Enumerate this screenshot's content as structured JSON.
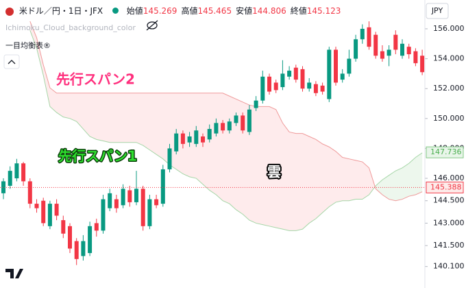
{
  "chart_data": {
    "type": "candlestick",
    "title": "米ドル／円・1日・JFX",
    "ohlc_readout": [
      {
        "label": "始値",
        "value": 145.269
      },
      {
        "label": "高値",
        "value": 145.465
      },
      {
        "label": "安値",
        "value": 144.806
      },
      {
        "label": "終値",
        "value": 145.123
      }
    ],
    "indicator": "Ichimoku_Cloud_background_color",
    "indicator_name": "一目均衡表®",
    "currency": "JPY",
    "ylim": [
      139.03,
      156.78
    ],
    "yticks": [
      {
        "value": 156,
        "label": "156.000"
      },
      {
        "value": 154,
        "label": "154.000"
      },
      {
        "value": 152,
        "label": "152.000"
      },
      {
        "value": 150,
        "label": "150.000"
      },
      {
        "value": 148,
        "label": "148.000"
      },
      {
        "value": 146,
        "label": "146.000"
      },
      {
        "value": 144.5,
        "label": "144.500"
      },
      {
        "value": 143,
        "label": "143.000"
      },
      {
        "value": 141.5,
        "label": "141.500"
      },
      {
        "value": 140.1,
        "label": "140.100"
      }
    ],
    "up_color": "#089981",
    "down_color": "#f23645",
    "open": [
      145.0,
      145.5,
      146.0,
      147.0,
      145.8,
      144.3,
      144.5,
      142.8,
      144.3,
      143.2,
      142.8,
      141.8,
      140.8,
      141.0,
      143.0,
      142.5,
      144.0,
      144.6,
      144.2,
      145.2,
      144.4,
      145.3,
      142.8,
      144.6,
      144.3,
      146.6,
      147.8,
      149.0,
      148.4,
      148.3,
      148.8,
      148.6,
      149.0,
      149.7,
      149.2,
      149.7,
      150.2,
      149.1,
      150.7,
      151.2,
      152.8,
      152.4,
      152.1,
      152.8,
      153.4,
      153.3,
      152.0,
      152.3,
      152.2,
      151.3,
      154.6,
      152.6,
      153.0,
      154.0,
      155.3,
      156.1,
      155.6,
      154.5,
      154.2,
      155.6,
      154.2,
      154.8,
      154.5,
      154.2
    ],
    "high": [
      146.0,
      146.8,
      147.3,
      147.1,
      146.0,
      144.6,
      144.7,
      144.5,
      144.6,
      143.5,
      143.0,
      142.0,
      142.2,
      143.1,
      143.3,
      144.9,
      145.3,
      144.9,
      145.6,
      145.5,
      146.5,
      145.5,
      144.9,
      144.9,
      146.9,
      148.3,
      149.3,
      149.2,
      149.1,
      149.5,
      149.0,
      149.6,
      150.0,
      149.9,
      150.0,
      150.4,
      150.4,
      150.9,
      151.5,
      153.2,
      153.0,
      152.6,
      153.9,
      153.5,
      153.6,
      153.5,
      152.7,
      152.5,
      152.4,
      154.8,
      154.8,
      153.3,
      154.6,
      155.6,
      156.3,
      156.5,
      155.8,
      154.9,
      154.9,
      155.9,
      155.3,
      155.0,
      154.7,
      154.6
    ],
    "low": [
      144.6,
      145.3,
      145.8,
      145.5,
      144.0,
      143.7,
      142.8,
      142.6,
      143.2,
      142.0,
      141.0,
      140.2,
      140.5,
      140.8,
      142.1,
      142.3,
      143.8,
      143.7,
      144.0,
      144.1,
      144.2,
      142.5,
      142.6,
      144.0,
      144.1,
      146.4,
      147.6,
      148.0,
      148.1,
      148.1,
      148.1,
      148.4,
      148.8,
      149.0,
      149.0,
      149.5,
      149.0,
      148.9,
      150.5,
      151.0,
      151.6,
      151.7,
      151.9,
      152.6,
      152.4,
      151.8,
      151.8,
      151.5,
      151.6,
      151.1,
      152.2,
      152.4,
      152.8,
      153.8,
      155.0,
      154.6,
      154.0,
      153.8,
      153.5,
      154.3,
      154.0,
      154.0,
      153.5,
      152.9
    ],
    "close": [
      145.8,
      146.5,
      147.0,
      145.8,
      144.3,
      144.0,
      143.0,
      144.3,
      143.5,
      142.3,
      141.3,
      140.6,
      141.8,
      142.8,
      142.5,
      144.6,
      145.0,
      144.0,
      145.3,
      144.4,
      145.3,
      142.8,
      144.6,
      144.2,
      146.6,
      148.0,
      149.0,
      148.3,
      148.8,
      149.2,
      148.4,
      149.3,
      149.7,
      149.2,
      149.8,
      150.2,
      149.2,
      150.6,
      151.2,
      152.8,
      151.8,
      151.9,
      153.0,
      153.2,
      152.6,
      152.0,
      152.4,
      151.7,
      151.8,
      154.6,
      152.4,
      153.0,
      154.0,
      155.3,
      156.0,
      154.8,
      154.2,
      154.0,
      154.6,
      154.6,
      155.0,
      154.3,
      153.7,
      153.1
    ],
    "series": [
      {
        "name": "先行スパン1",
        "color": "#a5d6a7",
        "values": [
          null,
          null,
          null,
          null,
          155.9,
          154.7,
          152.9,
          150.8,
          150.4,
          150.1,
          150.0,
          149.8,
          149.3,
          148.8,
          148.6,
          148.5,
          148.4,
          148.4,
          148.4,
          148.4,
          148.4,
          148.2,
          147.9,
          147.6,
          147.3,
          146.9,
          146.6,
          146.3,
          146.1,
          146.0,
          145.6,
          145.2,
          144.9,
          144.5,
          144.3,
          143.9,
          143.6,
          143.2,
          143.0,
          142.9,
          142.8,
          142.7,
          142.6,
          142.5,
          142.5,
          142.6,
          143.0,
          143.3,
          143.7,
          144.1,
          144.4,
          144.5,
          144.5,
          144.6,
          144.6,
          144.9,
          145.5,
          145.9,
          146.2,
          146.5,
          146.7,
          147.0,
          147.4,
          147.7
        ]
      },
      {
        "name": "先行スパン2",
        "color": "#ef9a9a",
        "values": [
          null,
          null,
          null,
          null,
          156.5,
          155.4,
          153.6,
          152.05,
          151.7,
          151.7,
          151.7,
          151.7,
          151.7,
          151.7,
          151.7,
          151.7,
          151.7,
          151.7,
          151.7,
          151.7,
          151.7,
          151.7,
          151.7,
          151.7,
          151.7,
          151.7,
          151.7,
          151.7,
          151.7,
          151.7,
          151.7,
          151.7,
          151.7,
          151.7,
          151.5,
          151.3,
          151.1,
          150.9,
          150.8,
          150.8,
          150.8,
          150.6,
          149.7,
          149.1,
          149.0,
          149.0,
          148.8,
          148.6,
          148.3,
          148.1,
          147.8,
          147.4,
          147.3,
          147.2,
          147.1,
          146.7,
          145.3,
          144.9,
          144.6,
          144.5,
          144.6,
          144.8,
          144.9,
          145.1
        ]
      }
    ],
    "annotation": "雲",
    "price_labels": [
      {
        "value": 147.736,
        "color": "#81c784",
        "text_color": "#4caf50"
      },
      {
        "value": 145.388,
        "color": "#f23645",
        "text_color": "#f23645"
      }
    ]
  }
}
